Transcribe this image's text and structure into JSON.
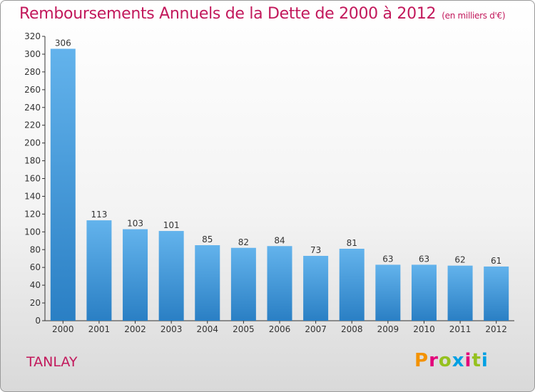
{
  "header": {
    "title": "Remboursements Annuels de la Dette de 2000 à 2012",
    "unit": "(en milliers d'€)"
  },
  "footer": {
    "city": "TANLAY",
    "brand": "Proxiti",
    "brand_colors": [
      "#f39200",
      "#e3007a",
      "#95c11f",
      "#00a0e3",
      "#e3007a",
      "#95c11f",
      "#00a0e3"
    ]
  },
  "colors": {
    "title": "#c2185b",
    "bar_light": "#63b3ec",
    "bar_dark": "#2a7fc4",
    "axis": "#333333",
    "grid": "#cccccc"
  },
  "chart_data": {
    "type": "bar",
    "title": "Remboursements Annuels de la Dette de 2000 à 2012",
    "subtitle": "(en milliers d'€)",
    "categories": [
      "2000",
      "2001",
      "2002",
      "2003",
      "2004",
      "2005",
      "2006",
      "2007",
      "2008",
      "2009",
      "2010",
      "2011",
      "2012"
    ],
    "values": [
      306,
      113,
      103,
      101,
      85,
      82,
      84,
      73,
      81,
      63,
      63,
      62,
      61
    ],
    "ylim": [
      0,
      320
    ],
    "yticks": [
      0,
      20,
      40,
      60,
      80,
      100,
      120,
      140,
      160,
      180,
      200,
      220,
      240,
      260,
      280,
      300,
      320
    ],
    "grid": false,
    "data_labels": true
  }
}
